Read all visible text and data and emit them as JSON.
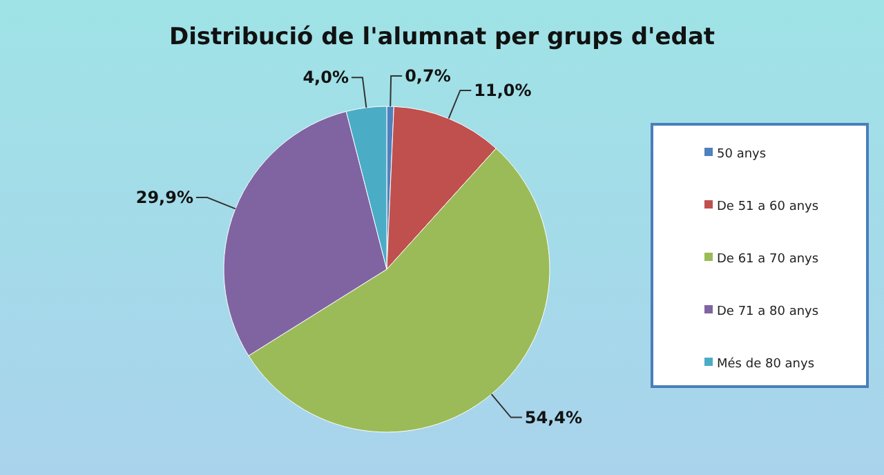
{
  "chart_data": {
    "type": "pie",
    "title": "Distribució  de l'alumnat per grups d'edat",
    "categories": [
      "50 anys",
      "De 51 a 60 anys",
      "De 61 a 70 anys",
      "De 71 a 80 anys",
      "Més de 80 anys"
    ],
    "values": [
      0.7,
      11.0,
      54.4,
      29.9,
      4.0
    ],
    "value_labels": [
      "0,7%",
      "11,0%",
      "54,4%",
      "29,9%",
      "4,0%"
    ],
    "colors": [
      "#4f81bd",
      "#c0504d",
      "#9bbb59",
      "#8064a2",
      "#4bacc6"
    ],
    "legend": "right"
  }
}
